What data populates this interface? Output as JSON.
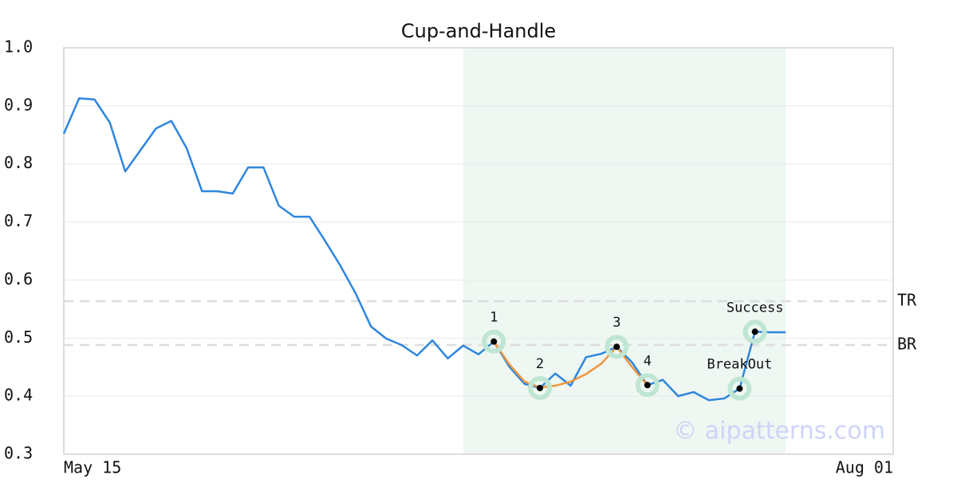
{
  "chart_data": {
    "type": "line",
    "title": "Cup-and-Handle",
    "x": [
      0,
      1,
      2,
      3,
      4,
      5,
      6,
      7,
      8,
      9,
      10,
      11,
      12,
      13,
      14,
      15,
      16,
      17,
      18,
      19,
      20,
      21,
      22,
      23,
      24,
      25,
      26,
      27,
      28,
      29,
      30,
      31,
      32,
      33,
      34,
      35,
      36,
      37,
      38,
      39,
      40,
      41,
      42,
      43,
      44,
      45,
      46,
      47
    ],
    "xlim": [
      0,
      54
    ],
    "xticks": [
      {
        "value": 0,
        "label": "May 15"
      },
      {
        "value": 54,
        "label": "Aug 01"
      }
    ],
    "ylim": [
      0.3,
      1.0
    ],
    "yticks": [
      0.3,
      0.4,
      0.5,
      0.6,
      0.7,
      0.8,
      0.9,
      {
        "value": 1,
        "label": "1.0"
      }
    ],
    "grid": true,
    "series": [
      {
        "color": "#2e86de",
        "values": [
          0.852,
          0.913,
          0.911,
          0.871,
          0.787,
          0.824,
          0.861,
          0.874,
          0.827,
          0.753,
          0.753,
          0.749,
          0.794,
          0.794,
          0.728,
          0.709,
          0.709,
          0.668,
          0.625,
          0.577,
          0.52,
          0.499,
          0.488,
          0.47,
          0.496,
          0.465,
          0.487,
          0.472,
          0.494,
          0.451,
          0.421,
          0.414,
          0.439,
          0.418,
          0.467,
          0.473,
          0.485,
          0.458,
          0.419,
          0.428,
          0.4,
          0.407,
          0.393,
          0.396,
          0.413,
          0.511,
          0.51,
          0.51
        ]
      },
      {
        "color": "#f0953f",
        "x": [
          28,
          29,
          30,
          31,
          32,
          33,
          34,
          35,
          36,
          37,
          38
        ],
        "values": [
          0.494,
          0.455,
          0.425,
          0.415,
          0.418,
          0.425,
          0.438,
          0.456,
          0.485,
          0.45,
          0.419
        ]
      }
    ],
    "shaded": {
      "x": [
        26,
        47
      ],
      "color": "#eef7f2"
    },
    "hlines": [
      {
        "label": "TR",
        "value": 0.5635
      },
      {
        "label": "BR",
        "value": 0.488
      }
    ],
    "marker_color": "#bfe6d2",
    "annotations": [
      {
        "label": "1",
        "x": 28,
        "y": 0.494
      },
      {
        "label": "2",
        "x": 31,
        "y": 0.414
      },
      {
        "label": "3",
        "x": 36,
        "y": 0.485
      },
      {
        "label": "4",
        "x": 38,
        "y": 0.419
      },
      {
        "label": "BreakOut",
        "x": 44,
        "y": 0.413
      },
      {
        "label": "Success",
        "x": 45,
        "y": 0.511
      }
    ],
    "watermark": "© aipatterns.com"
  }
}
